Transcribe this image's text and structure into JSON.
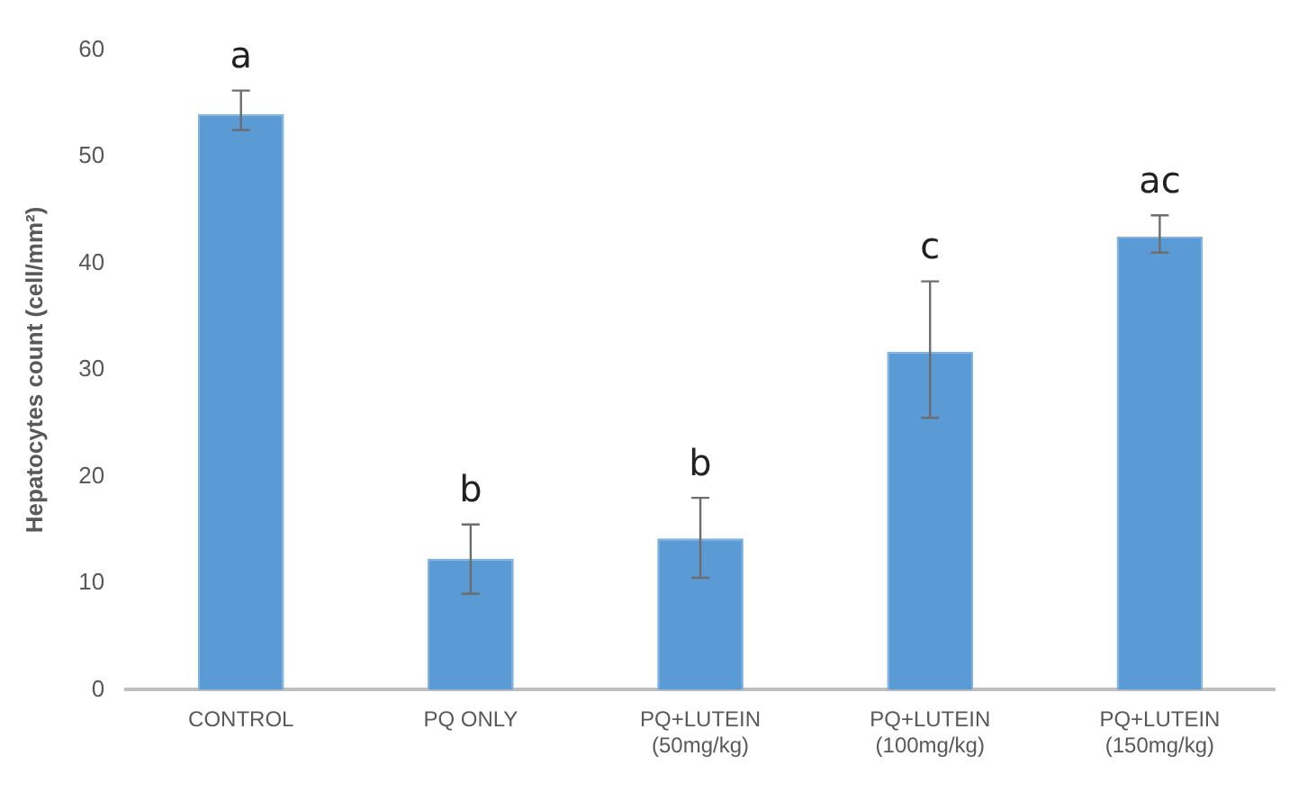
{
  "chart_data": {
    "type": "bar",
    "ylabel": "Hepatocytes count (cell/mm²)",
    "categories": [
      "CONTROL",
      "PQ ONLY",
      "PQ+LUTEIN\n(50mg/kg)",
      "PQ+LUTEIN\n(100mg/kg)",
      "PQ+LUTEIN\n(150mg/kg)"
    ],
    "values": [
      54,
      12.3,
      14.2,
      31.7,
      42.5
    ],
    "errors": [
      [
        52.5,
        56.2
      ],
      [
        9,
        15.5
      ],
      [
        10.5,
        18
      ],
      [
        25.5,
        38.3
      ],
      [
        41,
        44.5
      ]
    ],
    "color": "#5b9bd5",
    "ylim": [
      0,
      60
    ],
    "yticks": [
      0,
      10,
      20,
      30,
      40,
      50,
      60
    ],
    "grid": false,
    "legend": false,
    "annotations": [
      {
        "text": "a",
        "x": "CONTROL",
        "y": 56.2
      },
      {
        "text": "b",
        "x": "PQ ONLY",
        "y": 15.5
      },
      {
        "text": "b",
        "x": "PQ+LUTEIN\n(50mg/kg)",
        "y": 18
      },
      {
        "text": "c",
        "x": "PQ+LUTEIN\n(100mg/kg)",
        "y": 38.3
      },
      {
        "text": "ac",
        "x": "PQ+LUTEIN\n(150mg/kg)",
        "y": 44.5
      }
    ]
  }
}
